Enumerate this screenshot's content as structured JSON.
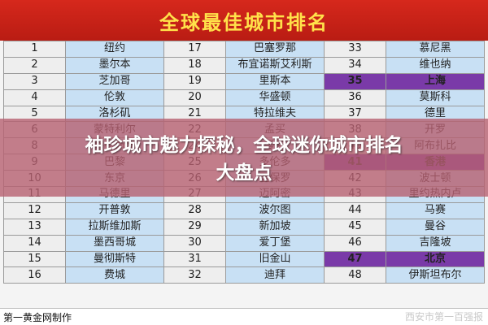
{
  "title": "全球最佳城市排名",
  "rows": [
    {
      "r1": "1",
      "c1": "纽约",
      "r2": "17",
      "c2": "巴塞罗那",
      "r3": "33",
      "c3": "慕尼黑"
    },
    {
      "r1": "2",
      "c1": "墨尔本",
      "r2": "18",
      "c2": "布宜诺斯艾利斯",
      "r3": "34",
      "c3": "维也纳"
    },
    {
      "r1": "3",
      "c1": "芝加哥",
      "r2": "19",
      "c2": "里斯本",
      "r3": "35",
      "c3": "上海"
    },
    {
      "r1": "4",
      "c1": "伦敦",
      "r2": "20",
      "c2": "华盛顿",
      "r3": "36",
      "c3": "莫斯科"
    },
    {
      "r1": "5",
      "c1": "洛杉矶",
      "r2": "21",
      "c2": "特拉维夫",
      "r3": "37",
      "c3": "德里"
    },
    {
      "r1": "6",
      "c1": "蒙特利尔",
      "r2": "22",
      "c2": "孟买",
      "r3": "38",
      "c3": "开罗"
    },
    {
      "r1": "8",
      "c1": "格拉斯哥",
      "r2": "24",
      "c2": "曼谷",
      "r3": "40",
      "c3": "阿布扎比"
    },
    {
      "r1": "9",
      "c1": "巴黎",
      "r2": "25",
      "c2": "多伦多",
      "r3": "41",
      "c3": "香港"
    },
    {
      "r1": "10",
      "c1": "东京",
      "r2": "26",
      "c2": "圣保罗",
      "r3": "42",
      "c3": "波士顿"
    },
    {
      "r1": "11",
      "c1": "马德里",
      "r2": "27",
      "c2": "迈阿密",
      "r3": "43",
      "c3": "里约热内卢"
    },
    {
      "r1": "12",
      "c1": "开普敦",
      "r2": "28",
      "c2": "波尔图",
      "r3": "44",
      "c3": "马赛"
    },
    {
      "r1": "13",
      "c1": "拉斯维加斯",
      "r2": "29",
      "c2": "新加坡",
      "r3": "45",
      "c3": "曼谷"
    },
    {
      "r1": "14",
      "c1": "墨西哥城",
      "r2": "30",
      "c2": "爱丁堡",
      "r3": "46",
      "c3": "吉隆坡"
    },
    {
      "r1": "15",
      "c1": "曼彻斯特",
      "r2": "31",
      "c2": "旧金山",
      "r3": "47",
      "c3": "北京"
    },
    {
      "r1": "16",
      "c1": "费城",
      "r2": "32",
      "c2": "迪拜",
      "r3": "48",
      "c3": "伊斯坦布尔"
    }
  ],
  "highlighted_ranks": [
    "35",
    "41",
    "47"
  ],
  "highlight_color": "#7a3aa8",
  "overlay": {
    "line1": "袖珍城市魅力探秘，全球迷你城市排名",
    "line2": "大盘点"
  },
  "footer": {
    "credit": "第一黄金网制作",
    "watermark": "西安市第一百强报"
  }
}
